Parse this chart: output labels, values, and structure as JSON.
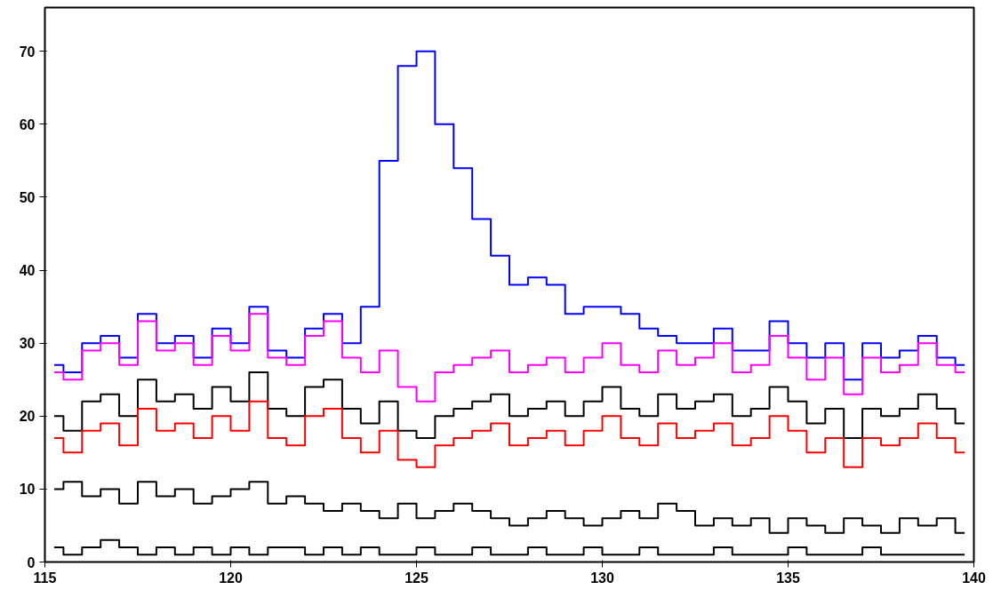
{
  "chart_data": {
    "type": "step",
    "x": [
      115.25,
      115.75,
      116.25,
      116.75,
      117.25,
      117.75,
      118.25,
      118.75,
      119.25,
      119.75,
      120.25,
      120.75,
      121.25,
      121.75,
      122.25,
      122.75,
      123.25,
      123.75,
      124.25,
      124.75,
      125.25,
      125.75,
      126.25,
      126.75,
      127.25,
      127.75,
      128.25,
      128.75,
      129.25,
      129.75,
      130.25,
      130.75,
      131.25,
      131.75,
      132.25,
      132.75,
      133.25,
      133.75,
      134.25,
      134.75,
      135.25,
      135.75,
      136.25,
      136.75,
      137.25,
      137.75,
      138.25,
      138.75,
      139.25,
      139.75
    ],
    "series": [
      {
        "color": "#0000ff",
        "values": [
          27,
          26,
          30,
          31,
          28,
          34,
          30,
          31,
          28,
          32,
          30,
          35,
          29,
          28,
          32,
          34,
          30,
          35,
          55,
          68,
          70,
          60,
          54,
          47,
          42,
          38,
          39,
          38,
          34,
          35,
          35,
          34,
          32,
          31,
          30,
          30,
          32,
          29,
          29,
          33,
          30,
          28,
          30,
          25,
          30,
          28,
          29,
          31,
          28,
          27
        ]
      },
      {
        "color": "#ff00ff",
        "values": [
          26,
          25,
          29,
          30,
          27,
          33,
          29,
          30,
          27,
          31,
          29,
          34,
          28,
          27,
          31,
          33,
          28,
          26,
          29,
          24,
          22,
          26,
          27,
          28,
          29,
          26,
          27,
          28,
          26,
          28,
          30,
          27,
          26,
          29,
          27,
          28,
          30,
          26,
          27,
          31,
          28,
          25,
          28,
          23,
          28,
          26,
          27,
          30,
          27,
          26
        ]
      },
      {
        "color": "#000000",
        "values": [
          20,
          18,
          22,
          23,
          20,
          25,
          22,
          23,
          21,
          24,
          22,
          26,
          21,
          20,
          24,
          25,
          21,
          19,
          22,
          18,
          17,
          20,
          21,
          22,
          23,
          20,
          21,
          22,
          20,
          22,
          24,
          21,
          20,
          23,
          21,
          22,
          23,
          20,
          21,
          24,
          22,
          19,
          21,
          17,
          21,
          20,
          21,
          23,
          21,
          19
        ]
      },
      {
        "color": "#ff0000",
        "values": [
          17,
          15,
          18,
          19,
          16,
          21,
          18,
          19,
          17,
          20,
          18,
          22,
          17,
          16,
          20,
          21,
          17,
          15,
          18,
          14,
          13,
          16,
          17,
          18,
          19,
          16,
          17,
          18,
          16,
          18,
          20,
          17,
          16,
          19,
          17,
          18,
          19,
          16,
          17,
          20,
          18,
          15,
          17,
          13,
          17,
          16,
          17,
          19,
          17,
          15
        ]
      },
      {
        "color": "#000000",
        "values": [
          10,
          11,
          9,
          10,
          8,
          11,
          9,
          10,
          8,
          9,
          10,
          11,
          8,
          9,
          8,
          7,
          8,
          7,
          6,
          8,
          6,
          7,
          8,
          7,
          6,
          5,
          6,
          7,
          6,
          5,
          6,
          7,
          6,
          8,
          7,
          5,
          6,
          5,
          6,
          4,
          6,
          5,
          4,
          6,
          5,
          4,
          6,
          5,
          6,
          4
        ]
      },
      {
        "color": "#000000",
        "values": [
          2,
          1,
          2,
          3,
          2,
          1,
          2,
          1,
          2,
          1,
          2,
          1,
          2,
          2,
          1,
          2,
          1,
          2,
          1,
          1,
          2,
          1,
          1,
          2,
          1,
          1,
          2,
          1,
          1,
          2,
          1,
          1,
          2,
          1,
          1,
          1,
          2,
          1,
          1,
          1,
          2,
          1,
          1,
          1,
          2,
          1,
          1,
          1,
          1,
          1
        ]
      }
    ],
    "xlim": [
      115,
      140
    ],
    "ylim": [
      0,
      76
    ],
    "xticks": [
      115,
      120,
      125,
      130,
      135,
      140
    ],
    "yticks": [
      0,
      10,
      20,
      30,
      40,
      50,
      60,
      70
    ],
    "grid": false
  }
}
